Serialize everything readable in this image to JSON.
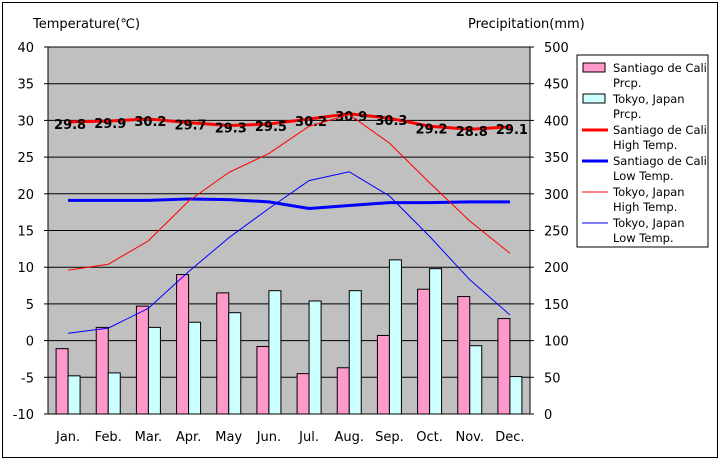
{
  "chart_data": {
    "type": "bar",
    "left_axis_title": "Temperature(℃)",
    "right_axis_title": "Precipitation(mm)",
    "categories": [
      "Jan.",
      "Feb.",
      "Mar.",
      "Apr.",
      "May",
      "Jun.",
      "Jul.",
      "Aug.",
      "Sep.",
      "Oct.",
      "Nov.",
      "Dec."
    ],
    "left_axis": {
      "min": -10,
      "max": 40,
      "step": 5,
      "ticks": [
        "-10",
        "-5",
        "0",
        "5",
        "10",
        "15",
        "20",
        "25",
        "30",
        "35",
        "40"
      ]
    },
    "right_axis": {
      "min": 0,
      "max": 500,
      "step": 50,
      "ticks": [
        "0",
        "50",
        "100",
        "150",
        "200",
        "250",
        "300",
        "350",
        "400",
        "450",
        "500"
      ]
    },
    "grid": true,
    "legend_position": "right",
    "series": [
      {
        "name": "Santiago de Cali Prcp.",
        "legend_lines": [
          "Santiago de Cali",
          "Prcp."
        ],
        "kind": "bar",
        "axis": "right",
        "color": "#ff99cc",
        "values": [
          89,
          118,
          147,
          190,
          165,
          92,
          55,
          63,
          107,
          170,
          160,
          130
        ]
      },
      {
        "name": "Tokyo, Japan Prcp.",
        "legend_lines": [
          "Tokyo, Japan",
          "Prcp."
        ],
        "kind": "bar",
        "axis": "right",
        "color": "#ccffff",
        "values": [
          52,
          56,
          118,
          125,
          138,
          168,
          154,
          168,
          210,
          198,
          93,
          51
        ]
      },
      {
        "name": "Santiago de Cali High Temp.",
        "legend_lines": [
          "Santiago de Cali",
          "High Temp."
        ],
        "kind": "line",
        "axis": "left",
        "color": "#ff0000",
        "width": 3,
        "values": [
          29.8,
          29.9,
          30.2,
          29.7,
          29.3,
          29.5,
          30.2,
          30.9,
          30.3,
          29.2,
          28.8,
          29.1
        ],
        "labels": [
          "29.8",
          "29.9",
          "30.2",
          "29.7",
          "29.3",
          "29.5",
          "30.2",
          "30.9",
          "30.3",
          "29.2",
          "28.8",
          "29.1"
        ]
      },
      {
        "name": "Santiago de Cali Low Temp.",
        "legend_lines": [
          "Santiago de Cali",
          "Low Temp."
        ],
        "kind": "line",
        "axis": "left",
        "color": "#0000ff",
        "width": 3,
        "values": [
          19.1,
          19.1,
          19.1,
          19.3,
          19.2,
          18.9,
          18.0,
          18.4,
          18.8,
          18.8,
          18.9,
          18.9
        ]
      },
      {
        "name": "Tokyo, Japan High Temp.",
        "legend_lines": [
          "Tokyo, Japan",
          "High Temp."
        ],
        "kind": "line",
        "axis": "left",
        "color": "#ff0000",
        "width": 1,
        "values": [
          9.6,
          10.4,
          13.6,
          19.0,
          22.9,
          25.5,
          29.2,
          30.8,
          26.9,
          21.5,
          16.3,
          11.9
        ]
      },
      {
        "name": "Tokyo, Japan Low Temp.",
        "legend_lines": [
          "Tokyo, Japan",
          "Low Temp."
        ],
        "kind": "line",
        "axis": "left",
        "color": "#0000ff",
        "width": 1,
        "values": [
          1.0,
          1.7,
          4.4,
          9.4,
          14.0,
          18.0,
          21.8,
          23.0,
          19.7,
          14.2,
          8.3,
          3.5
        ]
      }
    ]
  }
}
